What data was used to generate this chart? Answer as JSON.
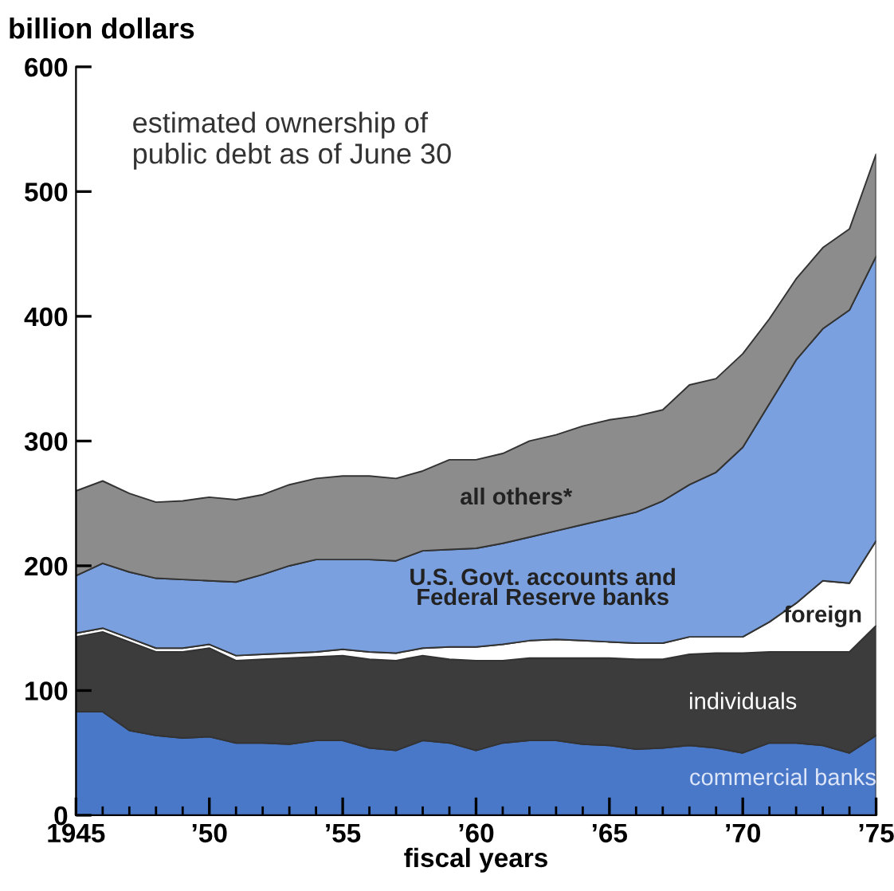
{
  "chart_data": {
    "type": "area",
    "stacked": true,
    "ylabel": "billion dollars",
    "xlabel": "fiscal years",
    "annotations": [
      "estimated ownership of\npublic debt as of June 30"
    ],
    "x": [
      1945,
      1946,
      1947,
      1948,
      1949,
      1950,
      1951,
      1952,
      1953,
      1954,
      1955,
      1956,
      1957,
      1958,
      1959,
      1960,
      1961,
      1962,
      1963,
      1964,
      1965,
      1966,
      1967,
      1968,
      1969,
      1970,
      1971,
      1972,
      1973,
      1974,
      1975
    ],
    "xlim": [
      1945,
      1975
    ],
    "xticks": [
      {
        "value": 1945,
        "label": "1945"
      },
      {
        "value": 1950,
        "label": "’50"
      },
      {
        "value": 1955,
        "label": "’55"
      },
      {
        "value": 1960,
        "label": "’60"
      },
      {
        "value": 1965,
        "label": "’65"
      },
      {
        "value": 1970,
        "label": "’70"
      },
      {
        "value": 1975,
        "label": "’75"
      }
    ],
    "ylim": [
      0,
      600
    ],
    "yticks": [
      0,
      100,
      200,
      300,
      400,
      500,
      600
    ],
    "grid": false,
    "legend": false,
    "series": [
      {
        "name": "commercial banks",
        "color": "#4a78c8",
        "values": [
          83,
          83,
          68,
          64,
          62,
          63,
          58,
          58,
          57,
          60,
          60,
          54,
          52,
          60,
          58,
          52,
          58,
          60,
          60,
          57,
          56,
          53,
          54,
          56,
          54,
          50,
          58,
          58,
          56,
          50,
          64
        ]
      },
      {
        "name": "individuals",
        "color": "#3c3c3c",
        "values": [
          60,
          64,
          71,
          67,
          69,
          71,
          66,
          67,
          69,
          67,
          68,
          71,
          72,
          68,
          67,
          72,
          66,
          66,
          66,
          69,
          70,
          72,
          71,
          73,
          76,
          80,
          73,
          73,
          75,
          81,
          88
        ]
      },
      {
        "name": "foreign",
        "color": "#ffffff",
        "values": [
          3,
          3,
          3,
          3,
          3,
          3,
          4,
          4,
          4,
          4,
          5,
          6,
          6,
          6,
          10,
          11,
          13,
          14,
          15,
          14,
          13,
          13,
          13,
          14,
          13,
          13,
          24,
          39,
          57,
          55,
          68
        ]
      },
      {
        "name": "U.S. Govt. accounts and\nFederal Reserve banks",
        "color": "#7aa0e0",
        "values": [
          46,
          52,
          53,
          56,
          55,
          51,
          59,
          64,
          70,
          74,
          72,
          74,
          74,
          78,
          78,
          79,
          81,
          83,
          87,
          93,
          99,
          105,
          114,
          122,
          132,
          152,
          175,
          195,
          202,
          219,
          228
        ]
      },
      {
        "name": "all others*",
        "color": "#8c8c8c",
        "values": [
          68,
          66,
          63,
          61,
          63,
          67,
          66,
          64,
          65,
          65,
          67,
          67,
          66,
          64,
          72,
          71,
          72,
          77,
          77,
          79,
          79,
          77,
          73,
          80,
          75,
          75,
          68,
          65,
          65,
          65,
          82
        ]
      }
    ]
  }
}
